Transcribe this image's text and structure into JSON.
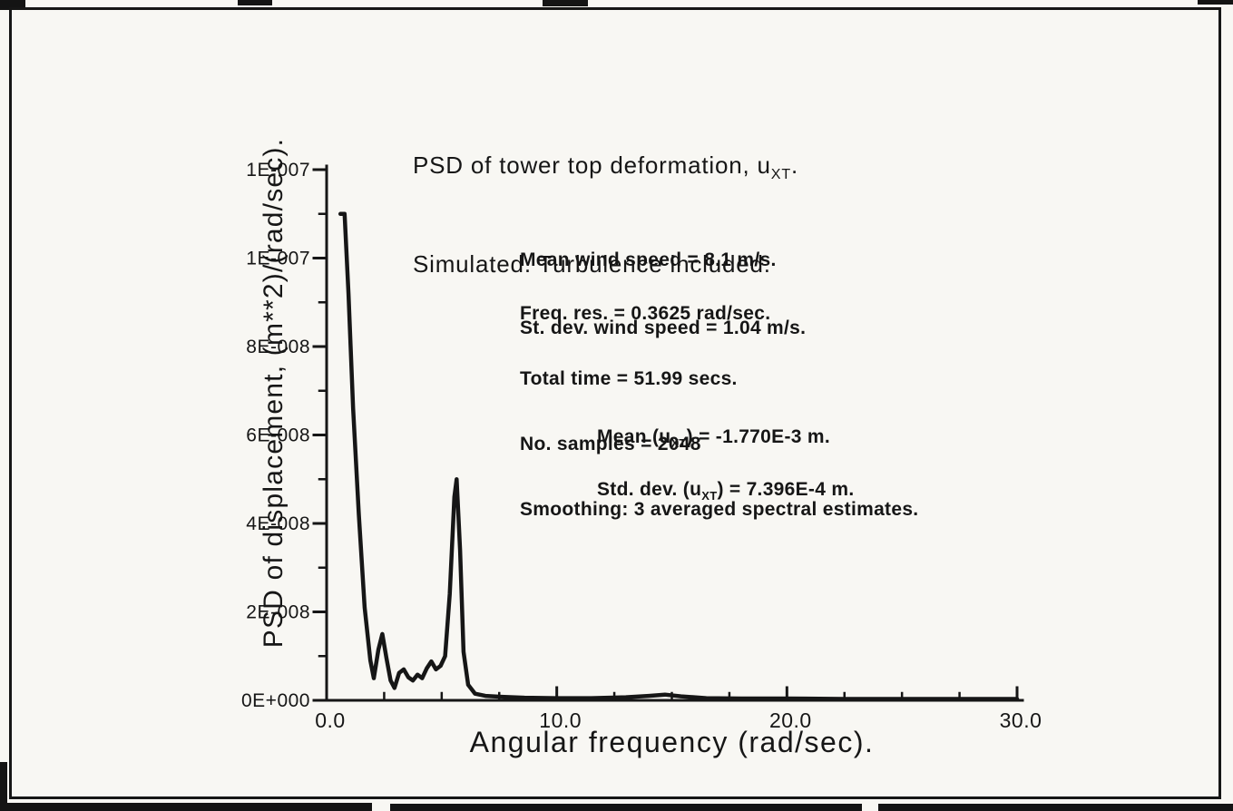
{
  "page": {
    "background": "#f8f7f3",
    "ink": "#161616"
  },
  "title": {
    "line1_pre": "PSD of tower top deformation, u",
    "line1_sub": "XT",
    "line1_post": ".",
    "line2": "Simulated. Turbulence included."
  },
  "annotations": {
    "wind": [
      "Mean wind speed = 8.1 m/s.",
      "St. dev. wind speed = 1.04 m/s."
    ],
    "analysis": [
      "Freq. res. = 0.3625 rad/sec.",
      "Total time = 51.99 secs.",
      "No. samples = 2048",
      "Smoothing: 3 averaged spectral estimates."
    ],
    "mean_pre": "Mean (u",
    "mean_sub": "XT",
    "mean_post": ") = -1.770E-3 m.",
    "std_pre": "Std. dev. (u",
    "std_sub": "XT",
    "std_post": ") = 7.396E-4 m."
  },
  "chart_data": {
    "type": "line",
    "title": "PSD of tower top deformation, uXT. Simulated. Turbulence included.",
    "xlabel": "Angular frequency (rad/sec).",
    "ylabel": "PSD of displacement, (m**2)/(rad/sec).",
    "xlim": [
      0,
      30
    ],
    "ylim": [
      0,
      1.2e-07
    ],
    "grid": false,
    "legend": null,
    "x_ticks": {
      "values": [
        0,
        10,
        20,
        30
      ],
      "labels": [
        "0.0",
        "10.0",
        "20.0",
        "30.0"
      ],
      "minor": [
        2.5,
        5,
        7.5,
        12.5,
        15,
        17.5,
        22.5,
        25,
        27.5
      ]
    },
    "y_ticks": {
      "values": [
        0,
        2e-08,
        4e-08,
        6e-08,
        8e-08,
        1e-07,
        1.2e-07
      ],
      "labels": [
        "0E+000",
        "2E-008",
        "4E-008",
        "6E-008",
        "8E-008",
        "1E-007",
        "1E-007"
      ],
      "minor": [
        1e-08,
        3e-08,
        5e-08,
        7e-08,
        9e-08,
        1.1e-07
      ]
    },
    "annotations_text": [
      "Mean wind speed = 8.1 m/s.",
      "St. dev. wind speed = 1.04 m/s.",
      "Freq. res. = 0.3625 rad/sec.",
      "Total time = 51.99 secs.",
      "No. samples = 2048",
      "Smoothing: 3 averaged spectral estimates.",
      "Mean (uXT) = -1.770E-3 m.",
      "Std. dev. (uXT) = 7.396E-4 m."
    ],
    "series": [
      {
        "name": "PSD of tower top deformation, simulated with turbulence",
        "points": [
          [
            0.6,
            1.1e-07
          ],
          [
            0.78,
            1.1e-07
          ],
          [
            0.95,
            9.2e-08
          ],
          [
            1.15,
            6.6e-08
          ],
          [
            1.4,
            4.2e-08
          ],
          [
            1.65,
            2.1e-08
          ],
          [
            1.9,
            9e-09
          ],
          [
            2.05,
            5e-09
          ],
          [
            2.25,
            1.15e-08
          ],
          [
            2.42,
            1.5e-08
          ],
          [
            2.6,
            9.5e-09
          ],
          [
            2.78,
            4.5e-09
          ],
          [
            2.95,
            2.8e-09
          ],
          [
            3.15,
            6.2e-09
          ],
          [
            3.35,
            7e-09
          ],
          [
            3.55,
            5.2e-09
          ],
          [
            3.75,
            4.5e-09
          ],
          [
            3.95,
            5.8e-09
          ],
          [
            4.15,
            5e-09
          ],
          [
            4.35,
            7.2e-09
          ],
          [
            4.55,
            8.8e-09
          ],
          [
            4.75,
            7e-09
          ],
          [
            4.95,
            7.8e-09
          ],
          [
            5.15,
            1e-08
          ],
          [
            5.35,
            2.4e-08
          ],
          [
            5.55,
            4.6e-08
          ],
          [
            5.65,
            5e-08
          ],
          [
            5.8,
            3.4e-08
          ],
          [
            5.95,
            1.1e-08
          ],
          [
            6.15,
            3.5e-09
          ],
          [
            6.45,
            1.5e-09
          ],
          [
            6.9,
            1e-09
          ],
          [
            7.6,
            8e-10
          ],
          [
            8.6,
            6e-10
          ],
          [
            10.0,
            5e-10
          ],
          [
            11.5,
            5e-10
          ],
          [
            13.0,
            7e-10
          ],
          [
            14.0,
            1e-09
          ],
          [
            14.7,
            1.3e-09
          ],
          [
            15.4,
            9e-10
          ],
          [
            16.5,
            5e-10
          ],
          [
            18.0,
            4e-10
          ],
          [
            20.0,
            4e-10
          ],
          [
            22.5,
            3e-10
          ],
          [
            25.0,
            3e-10
          ],
          [
            27.5,
            3e-10
          ],
          [
            30.0,
            3e-10
          ]
        ]
      }
    ]
  }
}
